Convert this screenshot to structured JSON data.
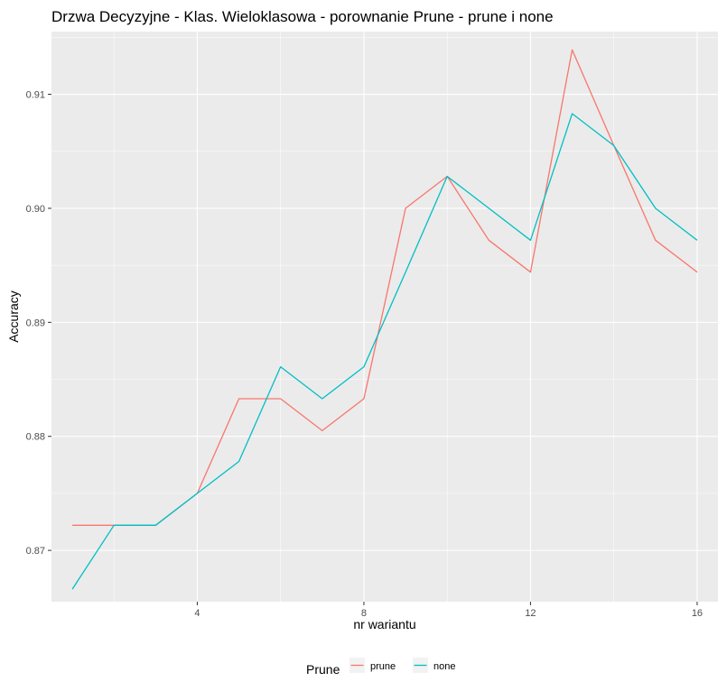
{
  "chart_data": {
    "type": "line",
    "title": "Drzwa Decyzyjne - Klas. Wieloklasowa - porownanie Prune - prune i none",
    "xlabel": "nr wariantu",
    "ylabel": "Accuracy",
    "x": [
      1,
      2,
      3,
      4,
      5,
      6,
      7,
      8,
      9,
      10,
      11,
      12,
      13,
      14,
      15,
      16
    ],
    "xlim": [
      0.5,
      16.5
    ],
    "ylim": [
      0.8655,
      0.9155
    ],
    "x_ticks": [
      4,
      8,
      12,
      16
    ],
    "x_tick_labels": [
      "4",
      "8",
      "12",
      "16"
    ],
    "y_ticks": [
      0.87,
      0.88,
      0.89,
      0.9,
      0.91
    ],
    "y_tick_labels": [
      "0.87",
      "0.88",
      "0.89",
      "0.90",
      "0.91"
    ],
    "grid": true,
    "legend": {
      "title": "Prune",
      "position": "bottom"
    },
    "series": [
      {
        "name": "prune",
        "color": "#F8766D",
        "values": [
          0.8722,
          0.8722,
          0.8722,
          0.875,
          0.8833,
          0.8833,
          0.8805,
          0.8833,
          0.9,
          0.9028,
          0.8972,
          0.8944,
          0.9139,
          0.9055,
          0.8972,
          0.8944
        ]
      },
      {
        "name": "none",
        "color": "#00BFC4",
        "values": [
          0.8666,
          0.8722,
          0.8722,
          0.875,
          0.8778,
          0.8861,
          0.8833,
          0.8861,
          0.8944,
          0.9028,
          0.9,
          0.8972,
          0.9083,
          0.9055,
          0.9,
          0.8972
        ]
      }
    ]
  }
}
